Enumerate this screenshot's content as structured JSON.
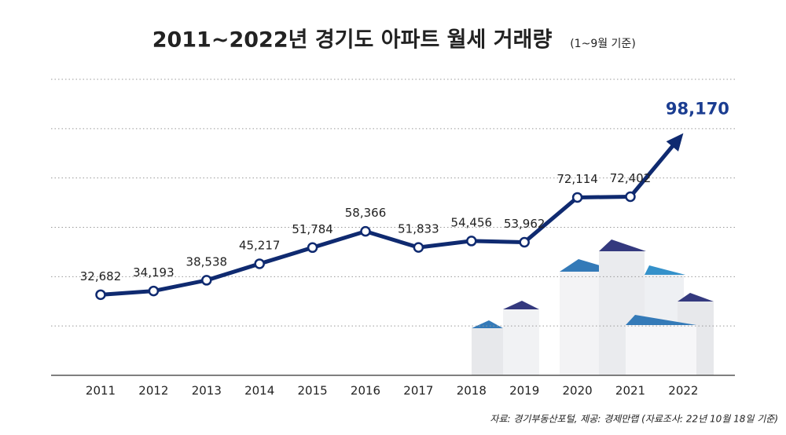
{
  "chart_data": {
    "type": "line",
    "title": "2011~2022년 경기도 아파트 월세 거래량",
    "subtitle": "(1~9월 기준)",
    "source": "자료: 경기부동산포털, 제공: 경제만랩 (자료조사: 22년 10월 18일 기준)",
    "categories": [
      "2011",
      "2012",
      "2013",
      "2014",
      "2015",
      "2016",
      "2017",
      "2018",
      "2019",
      "2020",
      "2021",
      "2022"
    ],
    "values": [
      32682,
      34193,
      38538,
      45217,
      51784,
      58366,
      51833,
      54456,
      53962,
      72114,
      72402,
      98170
    ],
    "value_labels": [
      "32,682",
      "34,193",
      "38,538",
      "45,217",
      "51,784",
      "58,366",
      "51,833",
      "54,456",
      "53,962",
      "72,114",
      "72,402",
      "98,170"
    ],
    "color": "#0f2a70",
    "highlight_color": "#1b3d91",
    "ylim": [
      0,
      120000
    ],
    "gridlines": [
      20000,
      40000,
      60000,
      80000,
      100000,
      120000
    ],
    "grid": true
  }
}
